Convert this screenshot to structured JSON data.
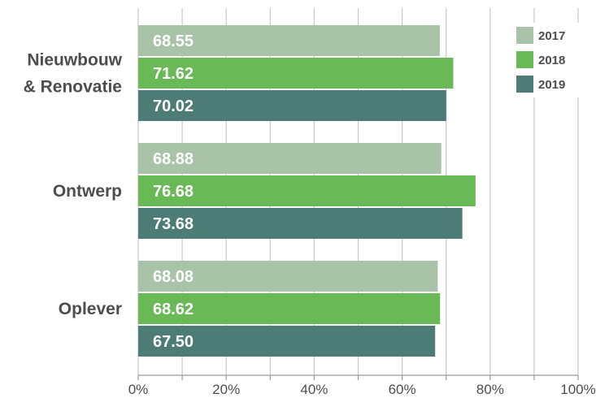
{
  "chart_data": {
    "type": "bar",
    "orientation": "horizontal",
    "title": "",
    "xlabel": "",
    "ylabel": "",
    "categories": [
      "Nieuwbouw & Renovatie",
      "Ontwerp",
      "Oplever"
    ],
    "category_lines": [
      [
        "Nieuwbouw",
        "& Renovatie"
      ],
      [
        "Ontwerp"
      ],
      [
        "Oplever"
      ]
    ],
    "series": [
      {
        "name": "2017",
        "color": "#a9c3a9",
        "values": [
          68.55,
          68.88,
          68.08
        ],
        "labels": [
          "68.55",
          "68.88",
          "68.08"
        ]
      },
      {
        "name": "2018",
        "color": "#6ab957",
        "values": [
          71.62,
          76.68,
          68.62
        ],
        "labels": [
          "71.62",
          "76.68",
          "68.62"
        ]
      },
      {
        "name": "2019",
        "color": "#4d7b76",
        "values": [
          70.02,
          73.68,
          67.5
        ],
        "labels": [
          "70.02",
          "73.68",
          "67.50"
        ]
      }
    ],
    "xlim": [
      0,
      100
    ],
    "x_ticks": [
      0,
      20,
      40,
      60,
      80,
      100
    ],
    "x_tick_labels": [
      "0%",
      "20%",
      "40%",
      "60%",
      "80%",
      "100%"
    ],
    "grid": true,
    "legend_position": "top-right"
  }
}
